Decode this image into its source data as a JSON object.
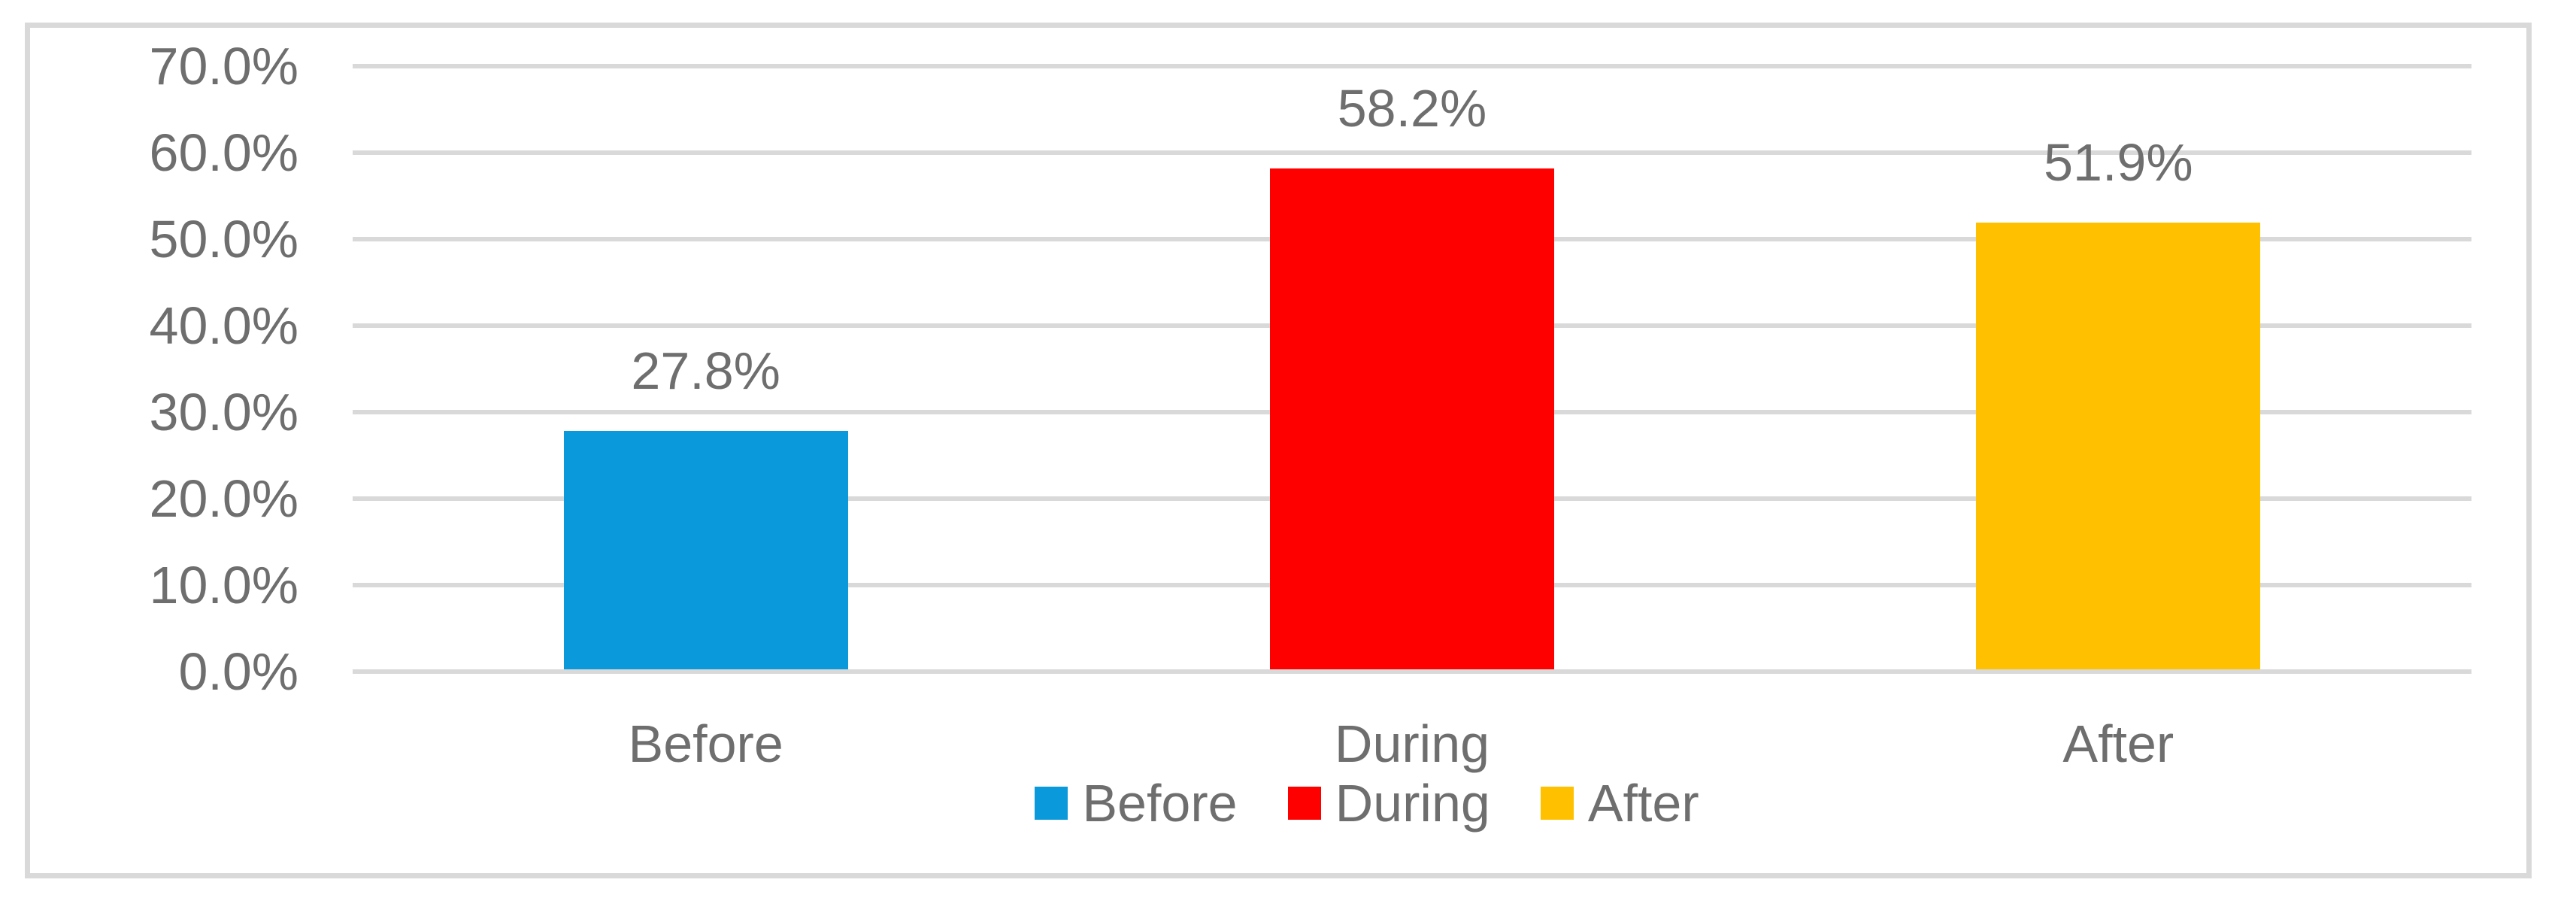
{
  "chart_data": {
    "type": "bar",
    "title": "",
    "categories": [
      "Before",
      "During",
      "After"
    ],
    "values": [
      27.8,
      58.2,
      51.9
    ],
    "value_labels": [
      "27.8%",
      "58.2%",
      "51.9%"
    ],
    "bar_colors": [
      "#0A99DA",
      "#FF0000",
      "#FFC000"
    ],
    "ylim": [
      0,
      70
    ],
    "ytick_step": 10,
    "ytick_labels": [
      "0.0%",
      "10.0%",
      "20.0%",
      "30.0%",
      "40.0%",
      "50.0%",
      "60.0%",
      "70.0%"
    ],
    "grid": true,
    "xlabel": "",
    "ylabel": "",
    "legend": {
      "position": "bottom",
      "entries": [
        {
          "label": "Before",
          "color": "#0A99DA"
        },
        {
          "label": "During",
          "color": "#FF0000"
        },
        {
          "label": "After",
          "color": "#FFC000"
        }
      ]
    },
    "colors": {
      "gridline": "#D9D9D9",
      "frame_border": "#D9D9D9",
      "label_text": "#6E6E6E",
      "background": "#FFFFFF"
    }
  }
}
